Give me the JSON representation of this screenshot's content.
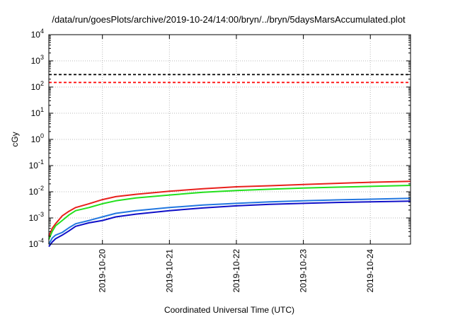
{
  "chart_data": {
    "type": "line",
    "title": "/data/run/goesPlots/archive/2019-10-24/14:00/bryn/../bryn/5daysMarsAccumulated.plot",
    "xlabel": "Coordinated Universal Time (UTC)",
    "ylabel": "cGy",
    "y_scale": "log",
    "ylim": [
      0.0001,
      10000
    ],
    "y_ticks": [
      {
        "base": "10",
        "exp": "4"
      },
      {
        "base": "10",
        "exp": "3"
      },
      {
        "base": "10",
        "exp": "2"
      },
      {
        "base": "10",
        "exp": "1"
      },
      {
        "base": "10",
        "exp": "0"
      },
      {
        "base": "10",
        "exp": "-1"
      },
      {
        "base": "10",
        "exp": "-2"
      },
      {
        "base": "10",
        "exp": "-3"
      },
      {
        "base": "10",
        "exp": "-4"
      }
    ],
    "x_ticks": [
      "2019-10-20",
      "2019-10-21",
      "2019-10-22",
      "2019-10-23",
      "2019-10-24"
    ],
    "x_range_days": [
      19.2,
      24.6
    ],
    "grid": true,
    "hlines": [
      {
        "y": 300,
        "color": "#000000",
        "style": "dashed"
      },
      {
        "y": 150,
        "color": "#ff0000",
        "style": "dashed"
      }
    ],
    "series": [
      {
        "color": "#e8201c",
        "x": [
          19.2,
          19.25,
          19.3,
          19.4,
          19.5,
          19.6,
          19.8,
          20.0,
          20.2,
          20.5,
          21.0,
          21.5,
          22.0,
          22.5,
          23.0,
          23.5,
          24.0,
          24.6
        ],
        "y": [
          0.0002,
          0.0004,
          0.0006,
          0.0012,
          0.0018,
          0.0025,
          0.0035,
          0.005,
          0.0065,
          0.008,
          0.0105,
          0.013,
          0.0155,
          0.017,
          0.019,
          0.021,
          0.023,
          0.025
        ]
      },
      {
        "color": "#22e01c",
        "x": [
          19.2,
          19.25,
          19.3,
          19.4,
          19.5,
          19.6,
          19.8,
          20.0,
          20.2,
          20.5,
          21.0,
          21.5,
          22.0,
          22.5,
          23.0,
          23.5,
          24.0,
          24.6
        ],
        "y": [
          0.00015,
          0.0003,
          0.0005,
          0.0008,
          0.0013,
          0.0019,
          0.0025,
          0.0035,
          0.0045,
          0.0058,
          0.0075,
          0.0095,
          0.0112,
          0.0125,
          0.0138,
          0.015,
          0.016,
          0.0175
        ]
      },
      {
        "color": "#2277e0",
        "x": [
          19.2,
          19.25,
          19.3,
          19.4,
          19.5,
          19.6,
          19.8,
          20.0,
          20.2,
          20.5,
          21.0,
          21.5,
          22.0,
          22.5,
          23.0,
          23.5,
          24.0,
          24.6
        ],
        "y": [
          0.0001,
          0.00017,
          0.00022,
          0.00028,
          0.00042,
          0.0006,
          0.0008,
          0.0011,
          0.0015,
          0.0019,
          0.0025,
          0.0031,
          0.0036,
          0.0041,
          0.0045,
          0.0049,
          0.0052,
          0.0056
        ]
      },
      {
        "color": "#1010c8",
        "x": [
          19.2,
          19.25,
          19.3,
          19.4,
          19.5,
          19.6,
          19.8,
          20.0,
          20.2,
          20.5,
          21.0,
          21.5,
          22.0,
          22.5,
          23.0,
          23.5,
          24.0,
          24.6
        ],
        "y": [
          8e-05,
          0.00012,
          0.00016,
          0.00022,
          0.00032,
          0.00048,
          0.00065,
          0.0008,
          0.0011,
          0.0014,
          0.0019,
          0.0024,
          0.0029,
          0.0033,
          0.0036,
          0.0039,
          0.0041,
          0.0044
        ]
      }
    ]
  }
}
